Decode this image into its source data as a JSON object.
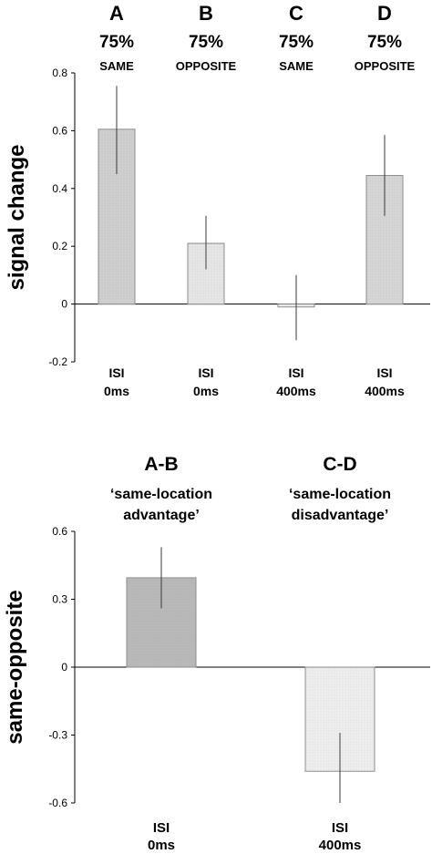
{
  "chart_data": [
    {
      "type": "bar",
      "ylabel": "signal change",
      "ylim": [
        -0.2,
        0.8
      ],
      "yticks": [
        -0.2,
        0,
        0.2,
        0.4,
        0.6,
        0.8
      ],
      "ytick_labels": [
        "-0.2",
        "0",
        "0.2",
        "0.4",
        "0.6",
        "0.8"
      ],
      "categories": [
        {
          "letter": "A",
          "percent": "75%",
          "cue": "SAME",
          "isi_label": "ISI",
          "isi_value": "0ms"
        },
        {
          "letter": "B",
          "percent": "75%",
          "cue": "OPPOSITE",
          "isi_label": "ISI",
          "isi_value": "0ms"
        },
        {
          "letter": "C",
          "percent": "75%",
          "cue": "SAME",
          "isi_label": "ISI",
          "isi_value": "400ms"
        },
        {
          "letter": "D",
          "percent": "75%",
          "cue": "OPPOSITE",
          "isi_label": "ISI",
          "isi_value": "400ms"
        }
      ],
      "values": [
        0.605,
        0.21,
        -0.01,
        0.445
      ],
      "error_low": [
        0.45,
        0.12,
        -0.125,
        0.305
      ],
      "error_high": [
        0.755,
        0.305,
        0.1,
        0.585
      ],
      "colors": [
        "#cfcfcf",
        "#e6e6e6",
        "#eeeeee",
        "#d6d6d6"
      ]
    },
    {
      "type": "bar",
      "ylabel": "same-opposite",
      "ylim": [
        -0.6,
        0.6
      ],
      "yticks": [
        -0.6,
        -0.3,
        0,
        0.3,
        0.6
      ],
      "ytick_labels": [
        "-0.6",
        "-0.3",
        "0",
        "0.3",
        "0.6"
      ],
      "categories": [
        {
          "header": "A-B",
          "sub1": "‘same-location",
          "sub2": "advantage’",
          "isi_label": "ISI",
          "isi_value": "0ms"
        },
        {
          "header": "C-D",
          "sub1": "‘same-location",
          "sub2": "disadvantage’",
          "isi_label": "ISI",
          "isi_value": "400ms"
        }
      ],
      "values": [
        0.395,
        -0.46
      ],
      "error_low": [
        0.26,
        -0.6
      ],
      "error_high": [
        0.53,
        -0.29
      ],
      "colors": [
        "#b9b9b9",
        "#eeeeee"
      ]
    }
  ]
}
